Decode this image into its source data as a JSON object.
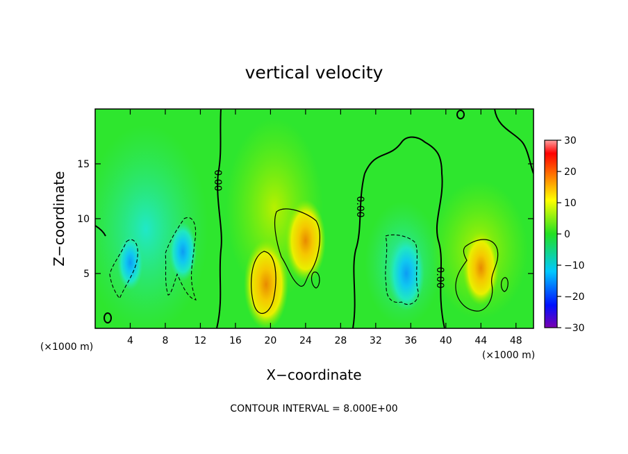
{
  "chart_data": {
    "type": "heatmap",
    "title": "vertical velocity",
    "xlabel": "X−coordinate",
    "ylabel": "Z−coordinate",
    "x_unit": "(×1000 m)",
    "y_unit": "(×1000 m)",
    "xlim": [
      0,
      50
    ],
    "ylim": [
      0,
      20
    ],
    "x_ticks": [
      4,
      8,
      12,
      16,
      20,
      24,
      28,
      32,
      36,
      40,
      44,
      48
    ],
    "y_ticks": [
      5,
      10,
      15
    ],
    "colorbar": {
      "range": [
        -30,
        30
      ],
      "ticks": [
        "30",
        "20",
        "10",
        "0",
        "−10",
        "−20",
        "−30"
      ]
    },
    "contour_interval": "CONTOUR INTERVAL = 8.000E+00",
    "zero_contour_label": "0.00",
    "features": [
      {
        "x": 19.5,
        "z": 4,
        "value": 16,
        "sign": "up"
      },
      {
        "x": 24,
        "z": 8,
        "value": 14,
        "sign": "up"
      },
      {
        "x": 44,
        "z": 5.5,
        "value": 12,
        "sign": "up"
      },
      {
        "x": 35.5,
        "z": 5,
        "value": -12,
        "sign": "down"
      },
      {
        "x": 10,
        "z": 7,
        "value": -8,
        "sign": "down"
      },
      {
        "x": 4,
        "z": 6,
        "value": -7,
        "sign": "down"
      }
    ]
  },
  "colors": {
    "background_field": "#2ee62e",
    "contour": "#000000"
  }
}
